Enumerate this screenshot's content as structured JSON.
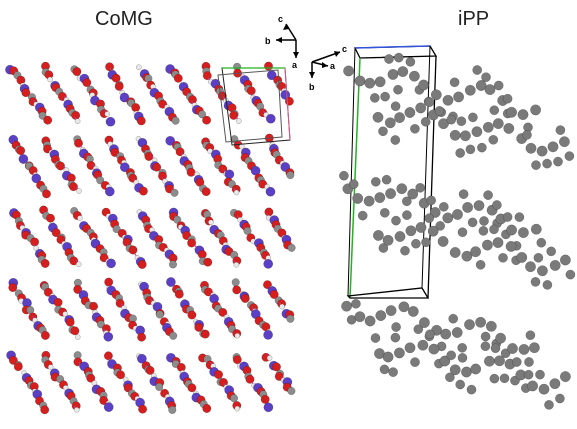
{
  "panels": {
    "left": {
      "title": "CoMG",
      "axes": {
        "x_label": "c",
        "y_label": "b",
        "z_label": "a"
      },
      "colors": {
        "oxygen": "#d51e1e",
        "cobalt": "#5b3fc4",
        "carbon": "#8c8c8c",
        "hydrogen": "#e8e8e8",
        "bond": "#b4418f"
      },
      "layers": 5
    },
    "right": {
      "title": "iPP",
      "axes": {
        "x_label": "c",
        "y_label": "b",
        "z_label": "a"
      },
      "colors": {
        "carbon": "#7a7a7a",
        "cell_green": "#21b321",
        "cell_blue": "#3355dd",
        "cell_black": "#000000"
      },
      "layers": 3
    }
  }
}
